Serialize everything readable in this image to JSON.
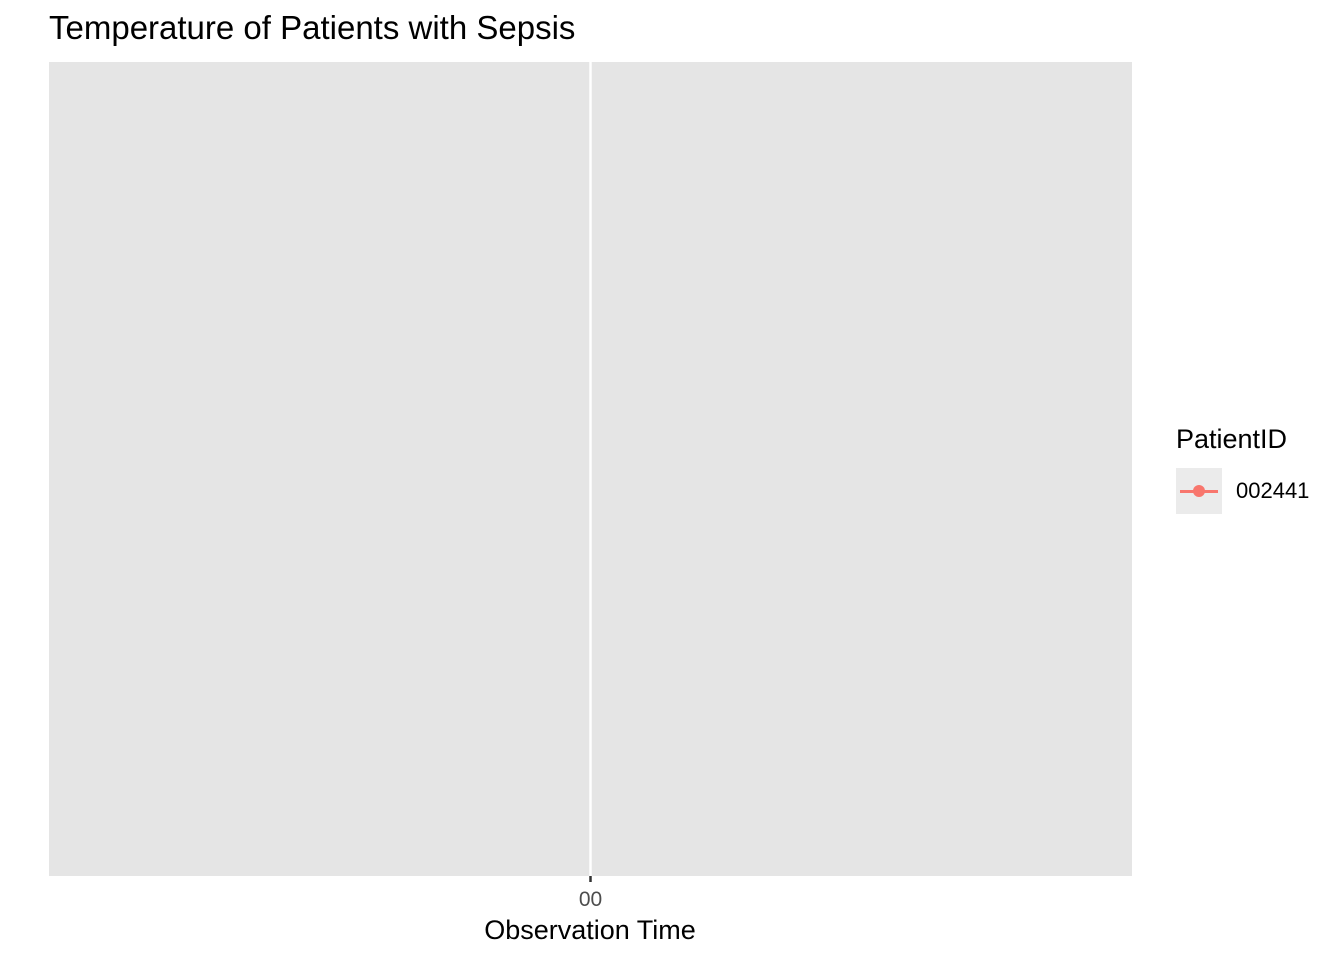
{
  "colors": {
    "panel_background": "#e5e5e5",
    "grid_line": "#ffffff",
    "series_color": "#f8766d",
    "axis_tick": "#333333",
    "tick_label": "#4d4d4d",
    "legend_key_background": "#ebebeb"
  },
  "chart_data": {
    "type": "line",
    "title": "Temperature of Patients with Sepsis",
    "xlabel": "Observation Time",
    "ylabel": "",
    "x_ticks": [
      "00"
    ],
    "y_ticks": [],
    "grid": true,
    "legend": {
      "title": "PatientID",
      "placement": "right",
      "entries": [
        "002441"
      ]
    },
    "series": [
      {
        "name": "002441",
        "marker": "point-and-line",
        "values": []
      }
    ]
  }
}
